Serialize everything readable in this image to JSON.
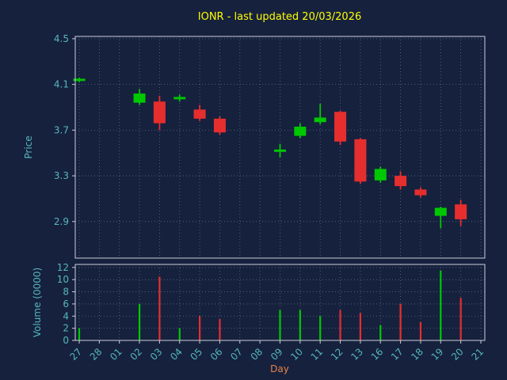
{
  "colors": {
    "background": "#16213e",
    "title": "#ffff00",
    "axis_text": "#55b8b8",
    "xlabel_text": "#e8824b",
    "spine": "#c9ced8",
    "grid": "#9aa7bf",
    "up": "#00c800",
    "down": "#e62e2e"
  },
  "chart_data": {
    "type": "candlestick_volume",
    "title": "IONR - last updated 20/03/2026",
    "xlabel": "Day",
    "ylabel_price": "Price",
    "ylabel_volume": "Volume (0000)",
    "grid": true,
    "categories": [
      "27",
      "28",
      "01",
      "02",
      "03",
      "04",
      "05",
      "06",
      "07",
      "08",
      "09",
      "10",
      "11",
      "12",
      "13",
      "16",
      "17",
      "18",
      "19",
      "20",
      "21"
    ],
    "price_ticks": [
      4.5,
      4.1,
      3.7,
      3.3,
      2.9
    ],
    "price_ylim": [
      2.58,
      4.52
    ],
    "volume_ticks": [
      0,
      2,
      4,
      6,
      8,
      10,
      12
    ],
    "volume_ylim": [
      0,
      12.5
    ],
    "candles": [
      {
        "day": "27",
        "open": 4.13,
        "high": 4.16,
        "low": 4.12,
        "close": 4.15,
        "volume": 2
      },
      {
        "day": "02",
        "open": 3.94,
        "high": 4.06,
        "low": 3.92,
        "close": 4.02,
        "volume": 6
      },
      {
        "day": "03",
        "open": 3.95,
        "high": 4.0,
        "low": 3.7,
        "close": 3.76,
        "volume": 10.5
      },
      {
        "day": "04",
        "open": 3.97,
        "high": 4.01,
        "low": 3.95,
        "close": 3.99,
        "volume": 2
      },
      {
        "day": "05",
        "open": 3.88,
        "high": 3.92,
        "low": 3.78,
        "close": 3.8,
        "volume": 4
      },
      {
        "day": "06",
        "open": 3.8,
        "high": 3.82,
        "low": 3.66,
        "close": 3.68,
        "volume": 3.5
      },
      {
        "day": "09",
        "open": 3.51,
        "high": 3.58,
        "low": 3.46,
        "close": 3.53,
        "volume": 5
      },
      {
        "day": "10",
        "open": 3.65,
        "high": 3.76,
        "low": 3.63,
        "close": 3.73,
        "volume": 5
      },
      {
        "day": "11",
        "open": 3.77,
        "high": 3.93,
        "low": 3.75,
        "close": 3.81,
        "volume": 4
      },
      {
        "day": "12",
        "open": 3.86,
        "high": 3.87,
        "low": 3.57,
        "close": 3.6,
        "volume": 5
      },
      {
        "day": "13",
        "open": 3.62,
        "high": 3.63,
        "low": 3.23,
        "close": 3.25,
        "volume": 4.5
      },
      {
        "day": "16",
        "open": 3.26,
        "high": 3.38,
        "low": 3.24,
        "close": 3.36,
        "volume": 2.5
      },
      {
        "day": "17",
        "open": 3.3,
        "high": 3.34,
        "low": 3.18,
        "close": 3.21,
        "volume": 6
      },
      {
        "day": "18",
        "open": 3.18,
        "high": 3.2,
        "low": 3.11,
        "close": 3.13,
        "volume": 3
      },
      {
        "day": "19",
        "open": 2.95,
        "high": 3.03,
        "low": 2.84,
        "close": 3.02,
        "volume": 11.5
      },
      {
        "day": "20",
        "open": 3.05,
        "high": 3.09,
        "low": 2.86,
        "close": 2.92,
        "volume": 7
      }
    ]
  }
}
